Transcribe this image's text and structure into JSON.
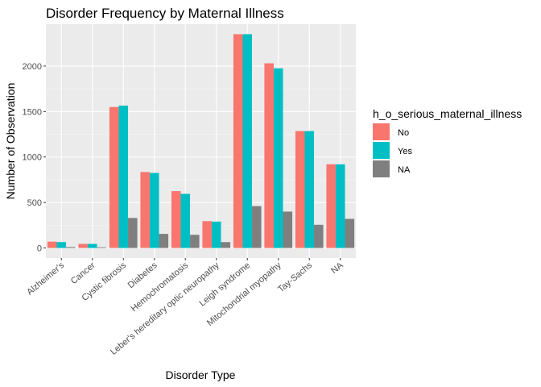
{
  "chart_data": {
    "type": "bar",
    "title": "Disorder Frequency by Maternal Illness",
    "xlabel": "Disorder Type",
    "ylabel": "Number of Observation",
    "categories": [
      "Alzheimer's",
      "Cancer",
      "Cystic fibrosis",
      "Diabetes",
      "Hemochromatosis",
      "Leber's hereditary optic neuropathy",
      "Leigh syndrome",
      "Mitochondrial myopathy",
      "Tay-Sachs",
      "NA"
    ],
    "series": [
      {
        "name": "No",
        "color": "#F8766D",
        "values": [
          70,
          45,
          1550,
          835,
          625,
          295,
          2350,
          2030,
          1285,
          920
        ]
      },
      {
        "name": "Yes",
        "color": "#00BFC4",
        "values": [
          65,
          45,
          1565,
          825,
          595,
          290,
          2350,
          1975,
          1285,
          920
        ]
      },
      {
        "name": "NA",
        "color": "#7F7F7F",
        "values": [
          10,
          8,
          330,
          155,
          145,
          65,
          460,
          400,
          255,
          320
        ]
      }
    ],
    "ylim": [
      -110,
      2460
    ],
    "yticks": [
      0,
      500,
      1000,
      1500,
      2000
    ],
    "ytick_labels": [
      "0",
      "500",
      "1000",
      "1500",
      "2000"
    ],
    "grid": true,
    "legend_title": "h_o_serious_maternal_illness",
    "legend_position": "right"
  }
}
